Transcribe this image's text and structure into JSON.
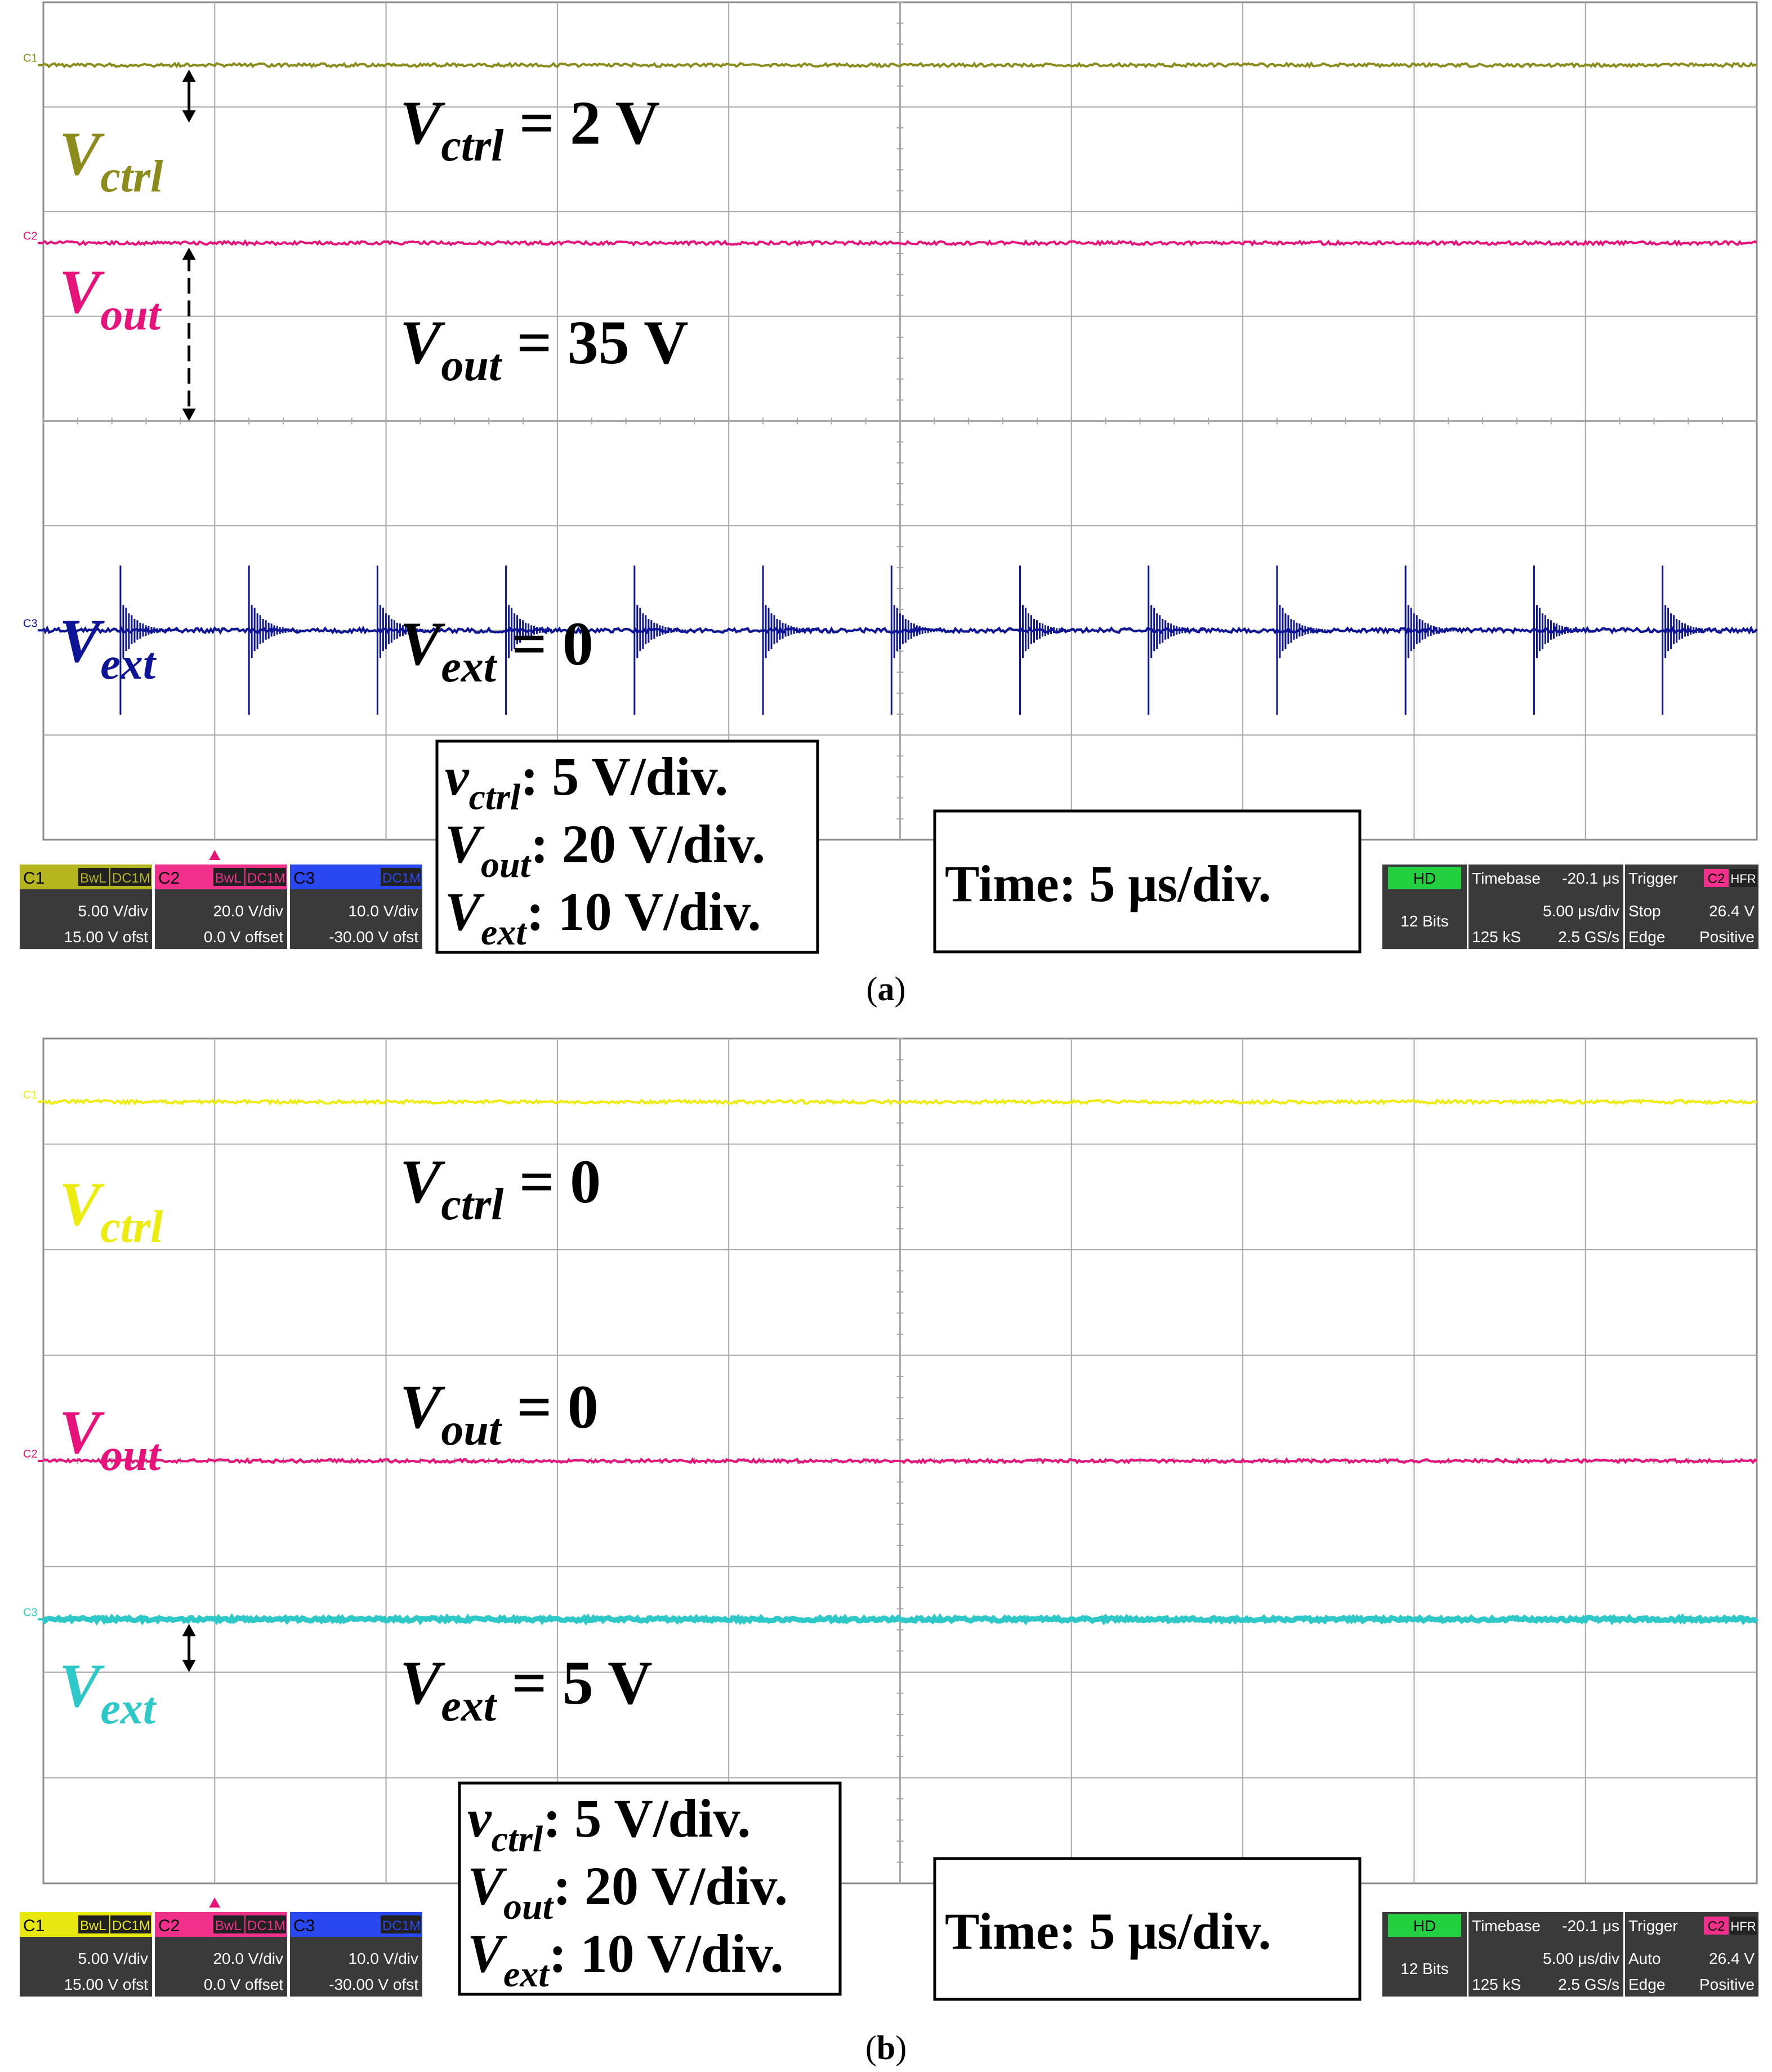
{
  "colors": {
    "ctrl_a": "#8c8c1e",
    "ctrl_b": "#ecec10",
    "out": "#e6147a",
    "ext_a": "#0e1496",
    "ext_b": "#2ec8c8",
    "grid": "#a8a8a8",
    "frame": "#8a8a8a"
  },
  "chart_data": [
    {
      "type": "line",
      "panel_label": "a",
      "grid": true,
      "divisions": {
        "x": 10,
        "y": 8
      },
      "series": [
        {
          "name": "V",
          "subscript": "ctrl",
          "channel": "C1",
          "color": "#8c8c1e",
          "level_div": 0.6,
          "noise": "small"
        },
        {
          "name": "V",
          "subscript": "out",
          "channel": "C2",
          "color": "#e6147a",
          "level_div": 2.3,
          "noise": "small"
        },
        {
          "name": "V",
          "subscript": "ext",
          "channel": "C3",
          "color": "#0e1496",
          "level_div": 6.0,
          "noise": "spikes",
          "spike_x_div": [
            0.45,
            1.2,
            1.95,
            2.7,
            3.45,
            4.2,
            4.95,
            5.7,
            6.45,
            7.2,
            7.95,
            8.7,
            9.45
          ]
        }
      ],
      "annotations": [
        {
          "var": "V",
          "sub": "ctrl",
          "text": " = 2 V"
        },
        {
          "var": "V",
          "sub": "out",
          "text": " = 35 V"
        },
        {
          "var": "V",
          "sub": "ext",
          "text": " = 0"
        }
      ],
      "scale_box": [
        {
          "var": "v",
          "sub": "ctrl",
          "text": ": 5 V/div."
        },
        {
          "var": "V",
          "sub": "out",
          "text": ": 20 V/div."
        },
        {
          "var": "V",
          "sub": "ext",
          "text": ": 10 V/div."
        }
      ],
      "time_box": "Time: 5 μs/div.",
      "status_bar": {
        "ch1": {
          "id": "C1",
          "flags": [
            "BwL",
            "DC1M"
          ],
          "scale": "5.00 V/div",
          "offset": "15.00 V ofst"
        },
        "ch2": {
          "id": "C2",
          "flags": [
            "BwL",
            "DC1M"
          ],
          "scale": "20.0 V/div",
          "offset": "0.0 V offset"
        },
        "ch3": {
          "id": "C3",
          "flags": [
            "DC1M"
          ],
          "scale": "10.0 V/div",
          "offset": "-30.00 V ofst"
        },
        "hd": {
          "label": "HD",
          "bits": "12 Bits"
        },
        "timebase": {
          "label": "Timebase",
          "delay": "-20.1 μs",
          "scale": "5.00 μs/div",
          "samples": "125 kS",
          "rate": "2.5 GS/s"
        },
        "trigger": {
          "label": "Trigger",
          "source": "C2",
          "flag": "HFR",
          "mode": "Stop",
          "level": "26.4 V",
          "type": "Edge",
          "slope": "Positive"
        }
      }
    },
    {
      "type": "line",
      "panel_label": "b",
      "grid": true,
      "divisions": {
        "x": 10,
        "y": 8
      },
      "series": [
        {
          "name": "V",
          "subscript": "ctrl",
          "channel": "C1",
          "color": "#ecec10",
          "level_div": 0.6,
          "noise": "small"
        },
        {
          "name": "V",
          "subscript": "out",
          "channel": "C2",
          "color": "#e6147a",
          "level_div": 4.0,
          "noise": "small"
        },
        {
          "name": "V",
          "subscript": "ext",
          "channel": "C3",
          "color": "#2ec8c8",
          "level_div": 5.5,
          "noise": "small"
        }
      ],
      "annotations": [
        {
          "var": "V",
          "sub": "ctrl",
          "text": " = 0"
        },
        {
          "var": "V",
          "sub": "out",
          "text": " = 0"
        },
        {
          "var": "V",
          "sub": "ext",
          "text": " = 5 V"
        }
      ],
      "scale_box": [
        {
          "var": "v",
          "sub": "ctrl",
          "text": ": 5 V/div."
        },
        {
          "var": "V",
          "sub": "out",
          "text": ": 20 V/div."
        },
        {
          "var": "V",
          "sub": "ext",
          "text": ": 10 V/div."
        }
      ],
      "time_box": "Time: 5 μs/div.",
      "status_bar": {
        "ch1": {
          "id": "C1",
          "flags": [
            "BwL",
            "DC1M"
          ],
          "scale": "5.00 V/div",
          "offset": "15.00 V ofst"
        },
        "ch2": {
          "id": "C2",
          "flags": [
            "BwL",
            "DC1M"
          ],
          "scale": "20.0 V/div",
          "offset": "0.0 V offset"
        },
        "ch3": {
          "id": "C3",
          "flags": [
            "DC1M"
          ],
          "scale": "10.0 V/div",
          "offset": "-30.00 V ofst"
        },
        "hd": {
          "label": "HD",
          "bits": "12 Bits"
        },
        "timebase": {
          "label": "Timebase",
          "delay": "-20.1 μs",
          "scale": "5.00 μs/div",
          "samples": "125 kS",
          "rate": "2.5 GS/s"
        },
        "trigger": {
          "label": "Trigger",
          "source": "C2",
          "flag": "HFR",
          "mode": "Auto",
          "level": "26.4 V",
          "type": "Edge",
          "slope": "Positive"
        }
      }
    }
  ],
  "captions": {
    "a": "a",
    "b": "b"
  }
}
